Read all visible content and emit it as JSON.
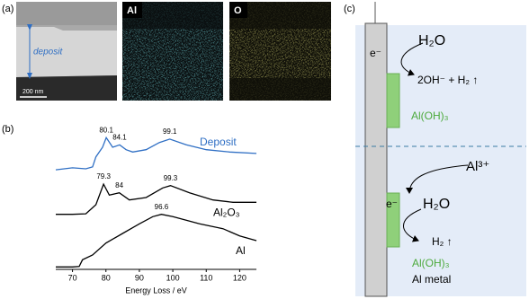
{
  "panels": {
    "a": {
      "label": "(a)",
      "images": [
        {
          "annotation": "deposit",
          "scale_bar": "200 nm"
        },
        {
          "label": "Al"
        },
        {
          "label": "O"
        }
      ]
    },
    "b": {
      "label": "(b)"
    },
    "c": {
      "label": "(c)",
      "top": {
        "electron": "e⁻",
        "reactant": "H₂O",
        "product": "2OH⁻ + H₂ ↑",
        "deposit": "Al(OH)₃"
      },
      "bottom": {
        "ion": "Al³⁺",
        "electron": "e⁻",
        "reactant": "H₂O",
        "product": "H₂ ↑",
        "deposit": "Al(OH)₃",
        "metal": "Al metal"
      }
    }
  },
  "chart_data": {
    "type": "line",
    "x_label": "Energy Loss / eV",
    "xlim": [
      65,
      125
    ],
    "xticks": [
      70,
      80,
      90,
      100,
      110,
      120
    ],
    "ylim": [
      0,
      3
    ],
    "series": [
      {
        "name": "Deposit",
        "color": "#2f6fc4",
        "x": [
          65,
          70,
          74,
          76,
          77,
          79,
          80.1,
          82,
          84.1,
          86,
          88,
          92,
          96,
          99.1,
          104,
          110,
          117,
          125
        ],
        "values": [
          2.08,
          2.12,
          2.1,
          2.14,
          2.35,
          2.55,
          2.75,
          2.55,
          2.6,
          2.5,
          2.45,
          2.5,
          2.65,
          2.72,
          2.6,
          2.5,
          2.45,
          2.42
        ],
        "peaks": [
          80.1,
          84.1,
          99.1
        ]
      },
      {
        "name": "Al₂O₃",
        "color": "#000000",
        "x": [
          65,
          70,
          74,
          77,
          79.3,
          81,
          84,
          87,
          92,
          97,
          99.3,
          105,
          112,
          118,
          125
        ],
        "values": [
          1.15,
          1.15,
          1.16,
          1.35,
          1.78,
          1.55,
          1.6,
          1.45,
          1.5,
          1.7,
          1.75,
          1.6,
          1.45,
          1.4,
          1.4
        ],
        "peaks": [
          79.3,
          84.0,
          99.3
        ]
      },
      {
        "name": "Al",
        "color": "#000000",
        "x": [
          65,
          70,
          72,
          73,
          76,
          80,
          85,
          90,
          94,
          96.6,
          100,
          108,
          115,
          120,
          125
        ],
        "values": [
          0.05,
          0.05,
          0.06,
          0.2,
          0.3,
          0.55,
          0.75,
          0.95,
          1.1,
          1.15,
          1.1,
          0.95,
          0.85,
          0.7,
          0.6
        ],
        "peaks": [
          96.6
        ]
      }
    ]
  }
}
